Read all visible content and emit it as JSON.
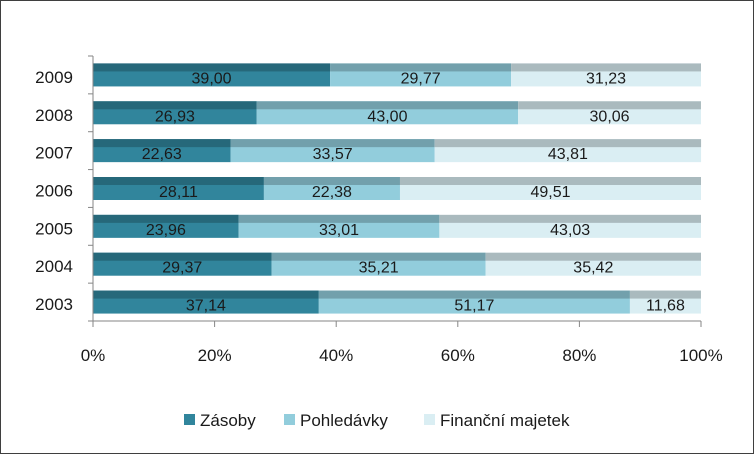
{
  "chart_data": {
    "type": "bar",
    "orientation": "horizontal",
    "stacked": "percent",
    "title": "",
    "xlabel": "",
    "ylabel": "",
    "xlim": [
      0,
      100
    ],
    "x_ticks": [
      "0%",
      "20%",
      "40%",
      "60%",
      "80%",
      "100%"
    ],
    "grid": false,
    "legend_position": "bottom",
    "categories": [
      "2009",
      "2008",
      "2007",
      "2006",
      "2005",
      "2004",
      "2003"
    ],
    "series": [
      {
        "name": "Zásoby",
        "color": "#31859c",
        "values": [
          39.0,
          26.93,
          22.63,
          28.11,
          23.96,
          29.37,
          37.14
        ],
        "labels": [
          "39,00",
          "26,93",
          "22,63",
          "28,11",
          "23,96",
          "29,37",
          "37,14"
        ]
      },
      {
        "name": "Pohledávky",
        "color": "#92cddc",
        "values": [
          29.77,
          43.0,
          33.57,
          22.38,
          33.01,
          35.21,
          51.17
        ],
        "labels": [
          "29,77",
          "43,00",
          "33,57",
          "22,38",
          "33,01",
          "35,21",
          "51,17"
        ]
      },
      {
        "name": "Finanční majetek",
        "color": "#daeef3",
        "values": [
          31.23,
          30.06,
          43.81,
          49.51,
          43.03,
          35.42,
          11.68
        ],
        "labels": [
          "31,23",
          "30,06",
          "43,81",
          "49,51",
          "43,03",
          "35,42",
          "11,68"
        ]
      }
    ]
  }
}
